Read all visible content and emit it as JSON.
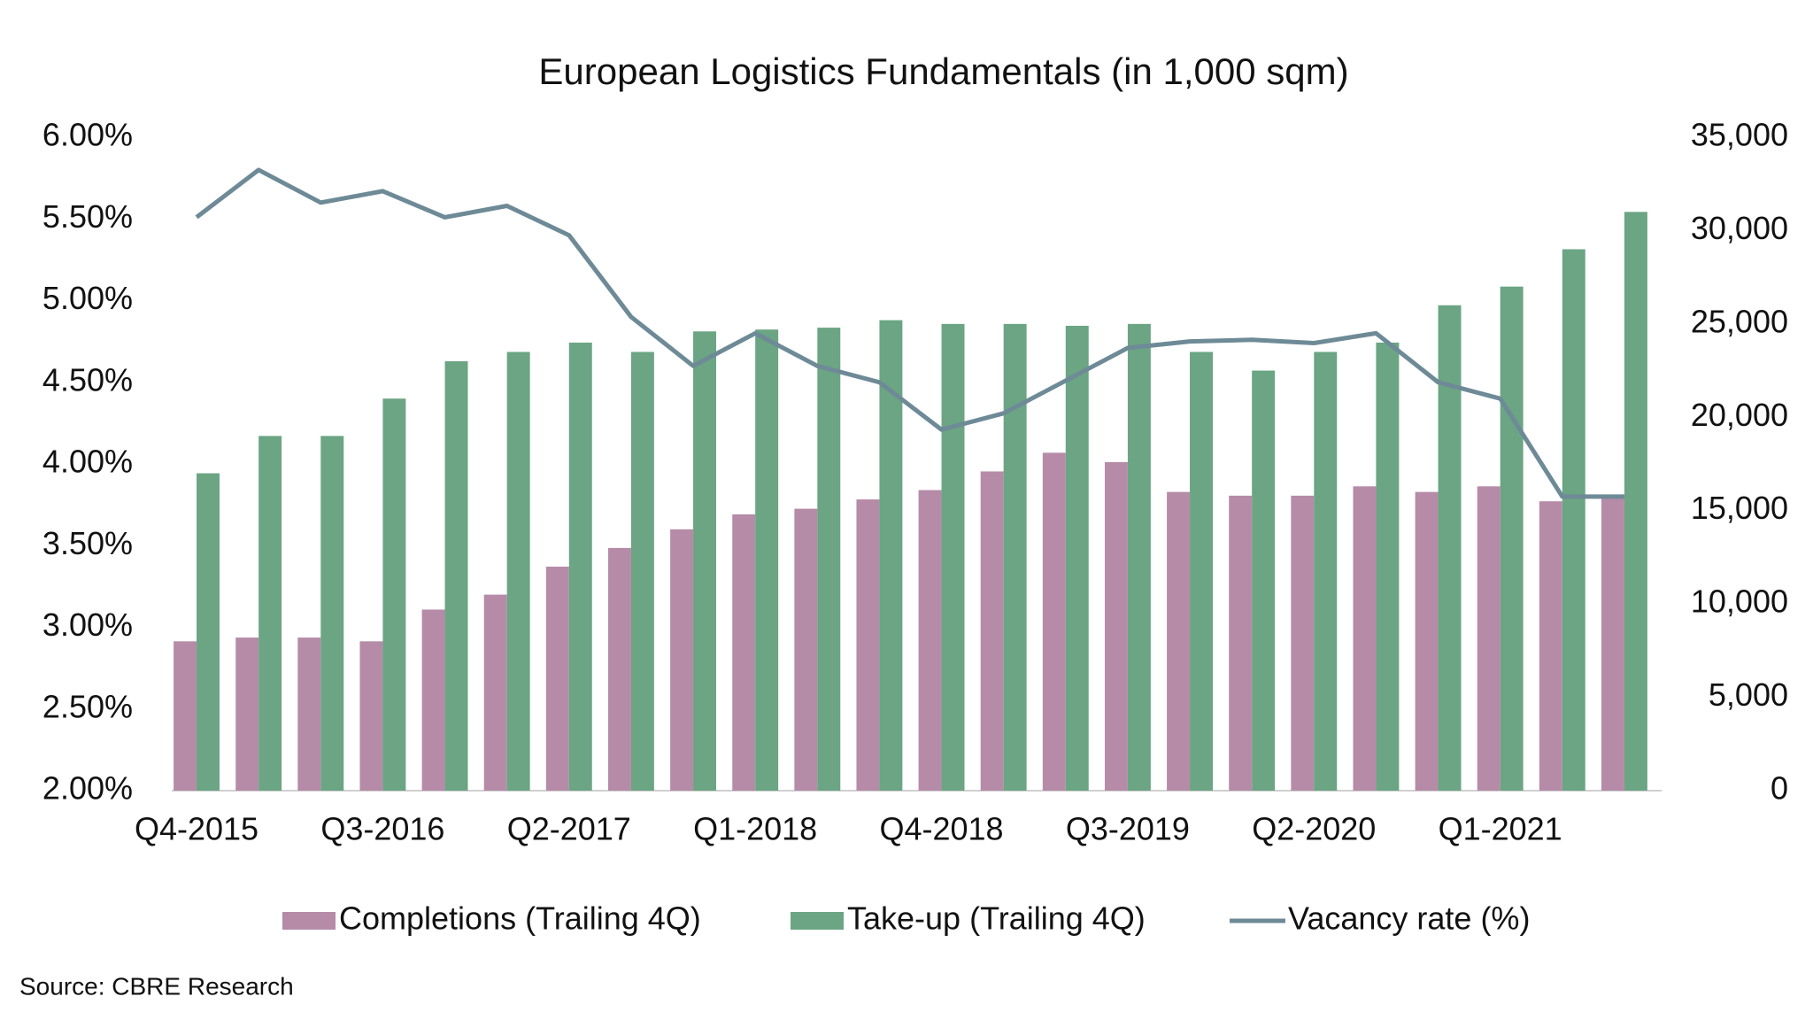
{
  "chart_data": {
    "type": "bar-line",
    "title": "European Logistics Fundamentals (in 1,000 sqm)",
    "source": "Source: CBRE Research",
    "categories": [
      "Q4-2015",
      null,
      null,
      "Q3-2016",
      null,
      null,
      "Q2-2017",
      null,
      null,
      "Q1-2018",
      null,
      null,
      "Q4-2018",
      null,
      null,
      "Q3-2019",
      null,
      null,
      "Q2-2020",
      null,
      null,
      "Q1-2021",
      null,
      null
    ],
    "ylim": [
      2,
      6
    ],
    "yticks": [
      {
        "value": 2,
        "label": "2.00%"
      },
      {
        "value": 2.5,
        "label": "2.50%"
      },
      {
        "value": 3,
        "label": "3.00%"
      },
      {
        "value": 3.5,
        "label": "3.50%"
      },
      {
        "value": 4,
        "label": "4.00%"
      },
      {
        "value": 4.5,
        "label": "4.50%"
      },
      {
        "value": 5,
        "label": "5.00%"
      },
      {
        "value": 5.5,
        "label": "5.50%"
      },
      {
        "value": 6,
        "label": "6.00%"
      }
    ],
    "y2lim": [
      0,
      35000
    ],
    "y2ticks": [
      0,
      {
        "value": 5000,
        "label": "5,000"
      },
      {
        "value": 10000,
        "label": "10,000"
      },
      {
        "value": 15000,
        "label": "15,000"
      },
      {
        "value": 20000,
        "label": "20,000"
      },
      {
        "value": 25000,
        "label": "25,000"
      },
      {
        "value": 30000,
        "label": "30,000"
      },
      {
        "value": 35000,
        "label": "35,000"
      }
    ],
    "series": [
      {
        "name": "Completions (Trailing 4Q)",
        "type": "bar",
        "axis": "y2",
        "color": "#b58ba8",
        "values": [
          8000,
          8200,
          8200,
          8000,
          9700,
          10500,
          12000,
          13000,
          14000,
          14800,
          15100,
          15600,
          16100,
          17100,
          18100,
          17600,
          16000,
          15800,
          15800,
          16300,
          16000,
          16300,
          15500,
          15800
        ]
      },
      {
        "name": "Take-up (Trailing 4Q)",
        "type": "bar",
        "axis": "y2",
        "color": "#6ba583",
        "values": [
          17000,
          19000,
          19000,
          21000,
          23000,
          23500,
          24000,
          23500,
          24600,
          24700,
          24800,
          25200,
          25000,
          25000,
          24900,
          25000,
          23500,
          22500,
          23500,
          24000,
          26000,
          27000,
          29000,
          31000
        ]
      },
      {
        "name": "Vacancy rate (%)",
        "type": "line",
        "color": "#6e8a97",
        "values": [
          5.51,
          5.8,
          5.6,
          5.67,
          5.51,
          5.58,
          5.4,
          4.9,
          4.6,
          4.8,
          4.6,
          4.5,
          4.21,
          4.31,
          4.51,
          4.71,
          4.75,
          4.76,
          4.74,
          4.8,
          4.5,
          4.4,
          3.8,
          3.8
        ]
      }
    ]
  }
}
